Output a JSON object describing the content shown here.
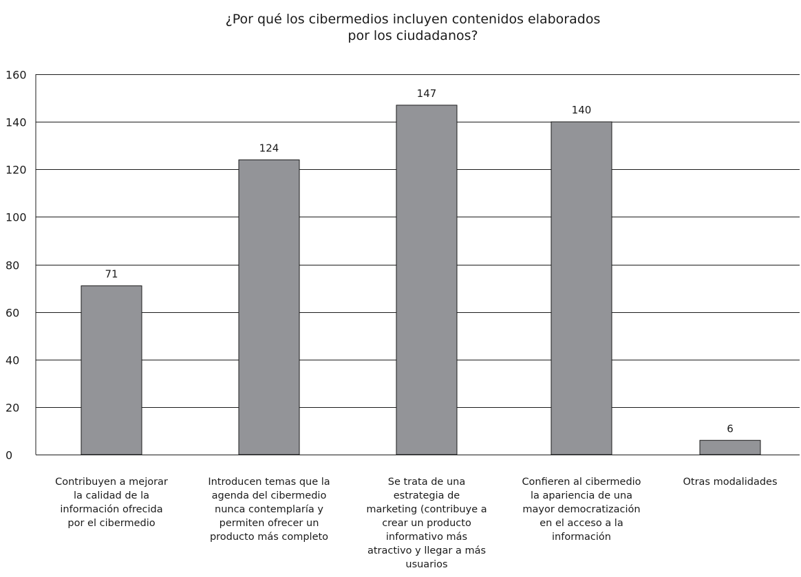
{
  "chart_data": {
    "type": "bar",
    "title_lines": [
      "¿Por qué los cibermedios incluyen contenidos elaborados",
      "por los ciudadanos?"
    ],
    "categories": [
      "Contribuyen a mejorar la calidad de la información ofrecida por el cibermedio",
      "Introducen temas que la agenda del cibermedio nunca contemplaría y permiten ofrecer un producto más completo",
      "Se trata de una estrategia de marketing (contribuye a crear un producto informativo más atractivo y llegar a más usuarios",
      "Confieren al cibermedio la apariencia de una mayor democratización en el acceso a la información",
      "Otras modalidades"
    ],
    "category_lines": [
      [
        "Contribuyen a mejorar",
        "la calidad de la",
        "información ofrecida",
        "por el cibermedio"
      ],
      [
        "Introducen temas que la",
        "agenda del cibermedio",
        "nunca contemplaría y",
        "permiten ofrecer un",
        "producto más completo"
      ],
      [
        "Se trata de una",
        "estrategia de",
        "marketing (contribuye a",
        "crear un producto",
        "informativo más",
        "atractivo y llegar a más",
        "usuarios"
      ],
      [
        "Confieren al cibermedio",
        "la apariencia de una",
        "mayor democratización",
        "en el acceso a la",
        "información"
      ],
      [
        "Otras modalidades"
      ]
    ],
    "values": [
      71,
      124,
      147,
      140,
      6
    ],
    "data_labels": [
      "71",
      "124",
      "147",
      "140",
      "6"
    ],
    "y_ticks": [
      "0",
      "20",
      "40",
      "60",
      "80",
      "100",
      "120",
      "140",
      "160"
    ],
    "ylim": [
      0,
      160
    ],
    "grid": true,
    "legend": "none",
    "colors": {
      "bar_fill": "#939498",
      "bar_stroke": "#1a1a1a",
      "grid": "#1a1a1a",
      "text": "#1a1a1a"
    }
  }
}
